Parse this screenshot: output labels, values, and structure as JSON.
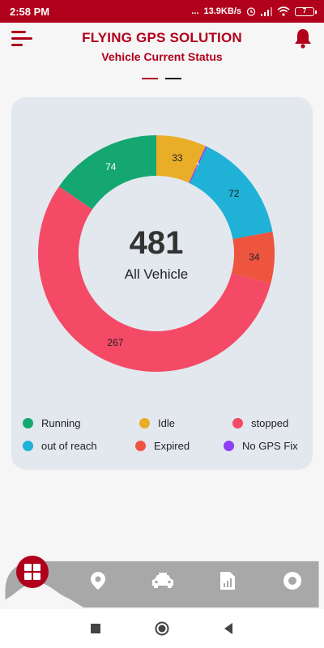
{
  "status_bar": {
    "time": "2:58 PM",
    "indicators": "...",
    "speed": "13.9KB/s",
    "battery": "7"
  },
  "header": {
    "title": "FLYING GPS SOLUTION",
    "subtitle": "Vehicle Current Status",
    "menu_icon": "hamburger-icon",
    "bell_icon": "bell-icon"
  },
  "colors": {
    "brand": "#b0001b",
    "dot_active": "#b0001b",
    "dot_inactive": "#111111"
  },
  "chart_data": {
    "type": "pie",
    "categories": [
      "Idle",
      "No GPS Fix",
      "out of reach",
      "Expired",
      "stopped",
      "Running"
    ],
    "values": [
      33,
      1,
      72,
      34,
      267,
      74
    ],
    "colors": [
      "#e9ad28",
      "#8e3ff5",
      "#1fb1d6",
      "#ee553f",
      "#f44a66",
      "#15a771"
    ],
    "labels": [
      "33",
      "1",
      "72",
      "34",
      "267",
      "74"
    ],
    "total": "481",
    "center_label": "All Vehicle"
  },
  "legend": [
    {
      "label": "Running",
      "color": "#15a771"
    },
    {
      "label": "Idle",
      "color": "#e9ad28"
    },
    {
      "label": "stopped",
      "color": "#f44a66"
    },
    {
      "label": "out of reach",
      "color": "#1fb1d6"
    },
    {
      "label": "Expired",
      "color": "#ee553f"
    },
    {
      "label": "No GPS Fix",
      "color": "#8e3ff5"
    }
  ],
  "nav": {
    "items": [
      "home-grid-icon",
      "location-pin-icon",
      "car-icon",
      "report-icon",
      "settings-circle-icon"
    ]
  }
}
